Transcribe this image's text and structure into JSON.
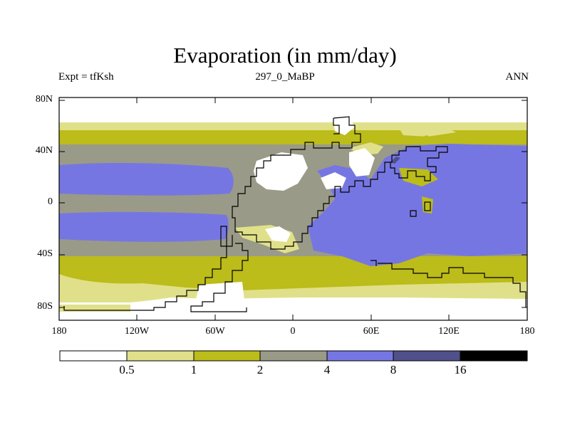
{
  "title": "Evaporation (in mm/day)",
  "subtitle_left": "Expt = tfKsh",
  "subtitle_center": "297_0_MaBP",
  "subtitle_right": "ANN",
  "y_ticks": [
    "80N",
    "40N",
    "0",
    "40S",
    "80S"
  ],
  "x_ticks": [
    "180",
    "120W",
    "60W",
    "0",
    "60E",
    "120E",
    "180"
  ],
  "colorbar": {
    "levels": [
      "0.5",
      "1",
      "2",
      "4",
      "8",
      "16"
    ],
    "colors": [
      "#ffffff",
      "#e0e08a",
      "#bcbc1a",
      "#9a9a88",
      "#7676e2",
      "#50508a",
      "#000000"
    ]
  }
}
